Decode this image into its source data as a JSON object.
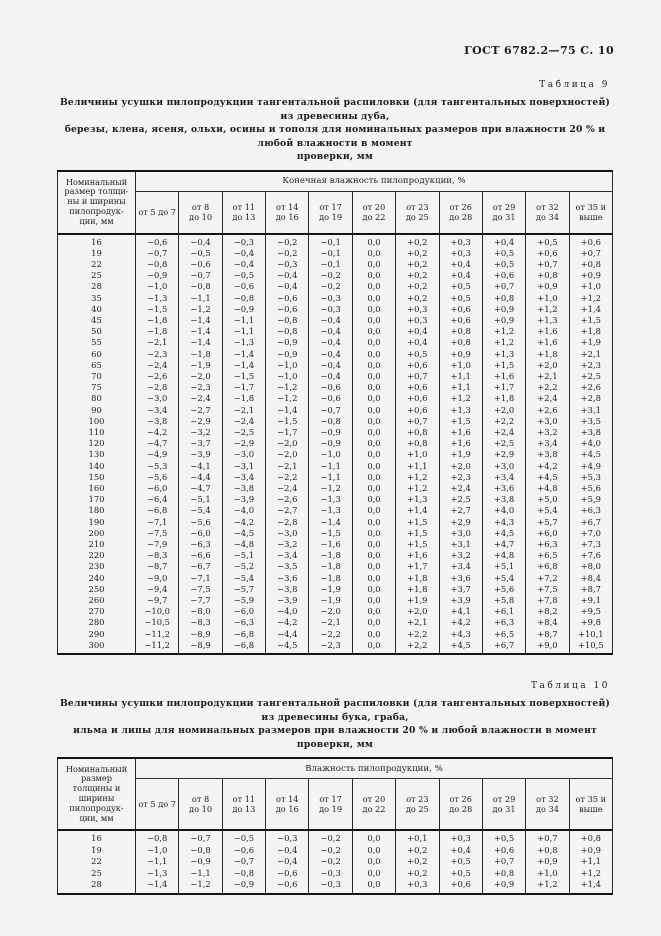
{
  "gost_header": "ГОСТ 6782.2—75 С. 10",
  "tables": [
    {
      "label": "Таблица 9",
      "caption": "Величины усушки пилопродукции тангентальной распиловки (для тангентальных поверхностей) из древесины дуба,\nберезы, клена, ясеня, ольхи, осины и тополя для номинальных размеров при влажности 20 % и любой влажности в момент\nпроверки, мм",
      "stub_header": "Номинальный\nразмер толщи-\nны и ширины\nпилопродук-\nции, мм",
      "span_header": "Конечная влажность пилопродукции, %",
      "columns": [
        "от 5 до 7",
        "от 8\nдо 10",
        "от 11\nдо 13",
        "от 14\nдо 16",
        "от 17\nдо 19",
        "от 20\nдо 22",
        "от 23\nдо 25",
        "от 26\nдо 28",
        "от 29\nдо 31",
        "от 32\nдо 34",
        "от 35 и\nвыше"
      ],
      "rows": [
        [
          "16",
          "−0,6",
          "−0,4",
          "−0,3",
          "−0,2",
          "−0,1",
          "0,0",
          "+0,2",
          "+0,3",
          "+0,4",
          "+0,5",
          "+0,6"
        ],
        [
          "19",
          "−0,7",
          "−0,5",
          "−0,4",
          "−0,2",
          "−0,1",
          "0,0",
          "+0,2",
          "+0,3",
          "+0,5",
          "+0,6",
          "+0,7"
        ],
        [
          "22",
          "−0,8",
          "−0,6",
          "−0,4",
          "−0,3",
          "−0,1",
          "0,0",
          "+0,2",
          "+0,4",
          "+0,5",
          "+0,7",
          "+0,8"
        ],
        [
          "25",
          "−0,9",
          "−0,7",
          "−0,5",
          "−0,4",
          "−0,2",
          "0,0",
          "+0,2",
          "+0,4",
          "+0,6",
          "+0,8",
          "+0,9"
        ],
        [
          "28",
          "−1,0",
          "−0,8",
          "−0,6",
          "−0,4",
          "−0,2",
          "0,0",
          "+0,2",
          "+0,5",
          "+0,7",
          "+0,9",
          "+1,0"
        ],
        [
          "35",
          "−1,3",
          "−1,1",
          "−0,8",
          "−0,6",
          "−0,3",
          "0,0",
          "+0,2",
          "+0,5",
          "+0,8",
          "+1,0",
          "+1,2"
        ],
        [
          "40",
          "−1,5",
          "−1,2",
          "−0,9",
          "−0,6",
          "−0,3",
          "0,0",
          "+0,3",
          "+0,6",
          "+0,9",
          "+1,2",
          "+1,4"
        ],
        [
          "45",
          "−1,8",
          "−1,4",
          "−1,1",
          "−0,8",
          "−0,4",
          "0,0",
          "+0,3",
          "+0,6",
          "+0,9",
          "+1,3",
          "+1,5"
        ],
        [
          "50",
          "−1,8",
          "−1,4",
          "−1,1",
          "−0,8",
          "−0,4",
          "0,0",
          "+0,4",
          "+0,8",
          "+1,2",
          "+1,6",
          "+1,8"
        ],
        [
          "55",
          "−2,1",
          "−1,4",
          "−1,3",
          "−0,9",
          "−0,4",
          "0,0",
          "+0,4",
          "+0,8",
          "+1,2",
          "+1,6",
          "+1,9"
        ],
        [
          "60",
          "−2,3",
          "−1,8",
          "−1,4",
          "−0,9",
          "−0,4",
          "0,0",
          "+0,5",
          "+0,9",
          "+1,3",
          "+1,8",
          "+2,1"
        ],
        [
          "65",
          "−2,4",
          "−1,9",
          "−1,4",
          "−1,0",
          "−0,4",
          "0,0",
          "+0,6",
          "+1,0",
          "+1,5",
          "+2,0",
          "+2,3"
        ],
        [
          "70",
          "−2,6",
          "−2,0",
          "−1,5",
          "−1,0",
          "−0,4",
          "0,0",
          "+0,7",
          "+1,1",
          "+1,6",
          "+2,1",
          "+2,5"
        ],
        [
          "75",
          "−2,8",
          "−2,3",
          "−1,7",
          "−1,2",
          "−0,6",
          "0,0",
          "+0,6",
          "+1,1",
          "+1,7",
          "+2,2",
          "+2,6"
        ],
        [
          "80",
          "−3,0",
          "−2,4",
          "−1,8",
          "−1,2",
          "−0,6",
          "0,0",
          "+0,6",
          "+1,2",
          "+1,8",
          "+2,4",
          "+2,8"
        ],
        [
          "90",
          "−3,4",
          "−2,7",
          "−2,1",
          "−1,4",
          "−0,7",
          "0,0",
          "+0,6",
          "+1,3",
          "+2,0",
          "+2,6",
          "+3,1"
        ],
        [
          "100",
          "−3,8",
          "−2,9",
          "−2,4",
          "−1,5",
          "−0,8",
          "0,0",
          "+0,7",
          "+1,5",
          "+2,2",
          "+3,0",
          "+3,5"
        ],
        [
          "110",
          "−4,2",
          "−3,2",
          "−2,5",
          "−1,7",
          "−0,9",
          "0,0",
          "+0,8",
          "+1,6",
          "+2,4",
          "+3,2",
          "+3,8"
        ],
        [
          "120",
          "−4,7",
          "−3,7",
          "−2,9",
          "−2,0",
          "−0,9",
          "0,0",
          "+0,8",
          "+1,6",
          "+2,5",
          "+3,4",
          "+4,0"
        ],
        [
          "130",
          "−4,9",
          "−3,9",
          "−3,0",
          "−2,0",
          "−1,0",
          "0,0",
          "+1,0",
          "+1,9",
          "+2,9",
          "+3,8",
          "+4,5"
        ],
        [
          "140",
          "−5,3",
          "−4,1",
          "−3,1",
          "−2,1",
          "−1,1",
          "0,0",
          "+1,1",
          "+2,0",
          "+3,0",
          "+4,2",
          "+4,9"
        ],
        [
          "150",
          "−5,6",
          "−4,4",
          "−3,4",
          "−2,2",
          "−1,1",
          "0,0",
          "+1,2",
          "+2,3",
          "+3,4",
          "+4,5",
          "+5,3"
        ],
        [
          "160",
          "−6,0",
          "−4,7",
          "−3,8",
          "−2,4",
          "−1,2",
          "0,0",
          "+1,2",
          "+2,4",
          "+3,6",
          "+4,8",
          "+5,6"
        ],
        [
          "170",
          "−6,4",
          "−5,1",
          "−3,9",
          "−2,6",
          "−1,3",
          "0,0",
          "+1,3",
          "+2,5",
          "+3,8",
          "+5,0",
          "+5,9"
        ],
        [
          "180",
          "−6,8",
          "−5,4",
          "−4,0",
          "−2,7",
          "−1,3",
          "0,0",
          "+1,4",
          "+2,7",
          "+4,0",
          "+5,4",
          "+6,3"
        ],
        [
          "190",
          "−7,1",
          "−5,6",
          "−4,2",
          "−2,8",
          "−1,4",
          "0,0",
          "+1,5",
          "+2,9",
          "+4,3",
          "+5,7",
          "+6,7"
        ],
        [
          "200",
          "−7,5",
          "−6,0",
          "−4,5",
          "−3,0",
          "−1,5",
          "0,0",
          "+1,5",
          "+3,0",
          "+4,5",
          "+6,0",
          "+7,0"
        ],
        [
          "210",
          "−7,9",
          "−6,3",
          "−4,8",
          "−3,2",
          "−1,6",
          "0,0",
          "+1,5",
          "+3,1",
          "+4,7",
          "+6,3",
          "+7,3"
        ],
        [
          "220",
          "−8,3",
          "−6,6",
          "−5,1",
          "−3,4",
          "−1,8",
          "0,0",
          "+1,6",
          "+3,2",
          "+4,8",
          "+6,5",
          "+7,6"
        ],
        [
          "230",
          "−8,7",
          "−6,7",
          "−5,2",
          "−3,5",
          "−1,8",
          "0,0",
          "+1,7",
          "+3,4",
          "+5,1",
          "+6,8",
          "+8,0"
        ],
        [
          "240",
          "−9,0",
          "−7,1",
          "−5,4",
          "−3,6",
          "−1,8",
          "0,0",
          "+1,8",
          "+3,6",
          "+5,4",
          "+7,2",
          "+8,4"
        ],
        [
          "250",
          "−9,4",
          "−7,5",
          "−5,7",
          "−3,8",
          "−1,9",
          "0,0",
          "+1,8",
          "+3,7",
          "+5,6",
          "+7,5",
          "+8,7"
        ],
        [
          "260",
          "−9,7",
          "−7,7",
          "−5,9",
          "−3,9",
          "−1,9",
          "0,0",
          "+1,9",
          "+3,9",
          "+5,8",
          "+7,8",
          "+9,1"
        ],
        [
          "270",
          "−10,0",
          "−8,0",
          "−6,0",
          "−4,0",
          "−2,0",
          "0,0",
          "+2,0",
          "+4,1",
          "+6,1",
          "+8,2",
          "+9,5"
        ],
        [
          "280",
          "−10,5",
          "−8,3",
          "−6,3",
          "−4,2",
          "−2,1",
          "0,0",
          "+2,1",
          "+4,2",
          "+6,3",
          "+8,4",
          "+9,8"
        ],
        [
          "290",
          "−11,2",
          "−8,9",
          "−6,8",
          "−4,4",
          "−2,2",
          "0,0",
          "+2,2",
          "+4,3",
          "+6,5",
          "+8,7",
          "+10,1"
        ],
        [
          "300",
          "−11,2",
          "−8,9",
          "−6,8",
          "−4,5",
          "−2,3",
          "0,0",
          "+2,2",
          "+4,5",
          "+6,7",
          "+9,0",
          "+10,5"
        ]
      ]
    },
    {
      "label": "Таблица 10",
      "caption": "Величины усушки пилопродукции тангентальной распиловки (для тангентальных поверхностей) из древесины бука, граба,\nильма и липы для номинальных размеров при влажности 20 % и любой влажности в момент проверки, мм",
      "stub_header": "Номинальный\nразмер\nтолщины и\nширины\nпилопродук-\nции, мм",
      "span_header": "Влажность пилопродукции, %",
      "columns": [
        "от 5 до 7",
        "от 8\nдо 10",
        "от 11\nдо 13",
        "от 14\nдо 16",
        "от 17\nдо 19",
        "от 20\nдо 22",
        "от 23\nдо 25",
        "от 26\nдо 28",
        "от 29\nдо 31",
        "от 32\nдо 34",
        "от 35 и\nвыше"
      ],
      "rows": [
        [
          "16",
          "−0,8",
          "−0,7",
          "−0,5",
          "−0,3",
          "−0,2",
          "0,0",
          "+0,1",
          "+0,3",
          "+0,5",
          "+0,7",
          "+0,8"
        ],
        [
          "19",
          "−1,0",
          "−0,8",
          "−0,6",
          "−0,4",
          "−0,2",
          "0,0",
          "+0,2",
          "+0,4",
          "+0,6",
          "+0,8",
          "+0,9"
        ],
        [
          "22",
          "−1,1",
          "−0,9",
          "−0,7",
          "−0,4",
          "−0,2",
          "0,0",
          "+0,2",
          "+0,5",
          "+0,7",
          "+0,9",
          "+1,1"
        ],
        [
          "25",
          "−1,3",
          "−1,1",
          "−0,8",
          "−0,6",
          "−0,3",
          "0,0",
          "+0,2",
          "+0,5",
          "+0,8",
          "+1,0",
          "+1,2"
        ],
        [
          "28",
          "−1,4",
          "−1,2",
          "−0,9",
          "−0,6",
          "−0,3",
          "0,0",
          "+0,3",
          "+0,6",
          "+0,9",
          "+1,2",
          "+1,4"
        ]
      ]
    }
  ]
}
